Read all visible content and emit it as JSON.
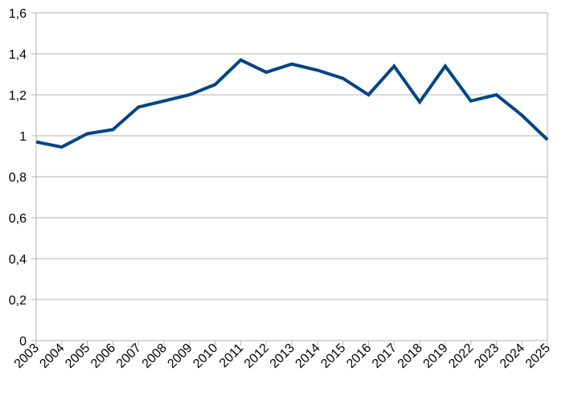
{
  "chart_data": {
    "type": "line",
    "categories": [
      "2003",
      "2004",
      "2005",
      "2006",
      "2007",
      "2008",
      "2009",
      "2010",
      "2011",
      "2012",
      "2013",
      "2014",
      "2015",
      "2016",
      "2017",
      "2018",
      "2019",
      "2022",
      "2023",
      "2024",
      "2025"
    ],
    "values": [
      0.97,
      0.945,
      1.01,
      1.03,
      1.14,
      1.17,
      1.2,
      1.25,
      1.37,
      1.31,
      1.35,
      1.32,
      1.28,
      1.2,
      1.34,
      1.165,
      1.34,
      1.17,
      1.2,
      1.1,
      0.98
    ],
    "color": "#004586",
    "ylim": [
      0,
      1.6
    ],
    "yticks": [
      0,
      {
        "value": 0.2,
        "label": "0,2"
      },
      {
        "value": 0.4,
        "label": "0,4"
      },
      {
        "value": 0.6,
        "label": "0,6"
      },
      {
        "value": 0.8,
        "label": "0,8"
      },
      1,
      {
        "value": 1.2,
        "label": "1,2"
      },
      {
        "value": 1.4,
        "label": "1,4"
      },
      {
        "value": 1.6,
        "label": "1,6"
      }
    ],
    "grid": true
  }
}
